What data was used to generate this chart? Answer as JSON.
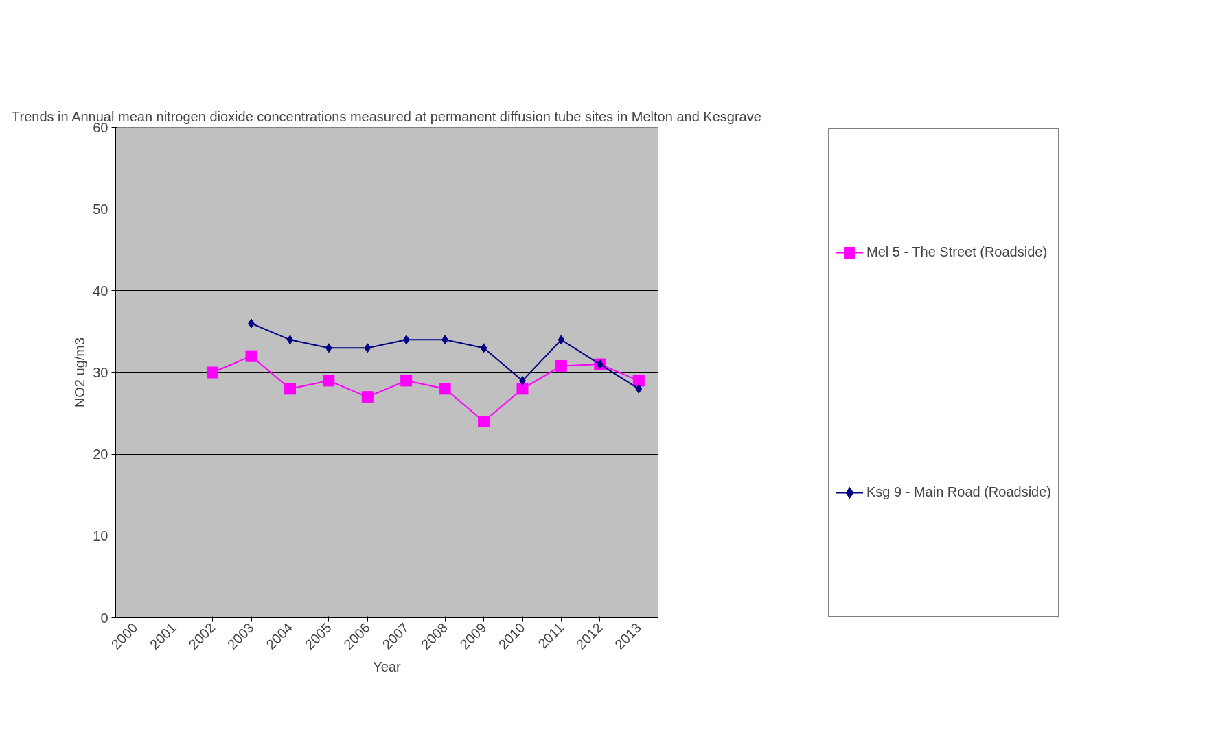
{
  "chart_data": {
    "type": "line",
    "title": "Trends in Annual mean nitrogen dioxide concentrations measured at permanent diffusion tube sites in Melton and Kesgrave",
    "xlabel": "Year",
    "ylabel": "NO2 ug/m3",
    "categories": [
      "2000",
      "2001",
      "2002",
      "2003",
      "2004",
      "2005",
      "2006",
      "2007",
      "2008",
      "2009",
      "2010",
      "2011",
      "2012",
      "2013"
    ],
    "series": [
      {
        "name": "Mel 5 - The Street (Roadside)",
        "color": "#ff00ff",
        "marker": "square",
        "values": [
          null,
          null,
          30,
          32,
          28,
          29,
          27,
          29,
          28,
          24,
          28,
          30.8,
          31,
          29
        ]
      },
      {
        "name": "Ksg 9 - Main Road (Roadside)",
        "color": "#000080",
        "marker": "diamond",
        "values": [
          null,
          null,
          null,
          36,
          34,
          33,
          33,
          34,
          34,
          33,
          29,
          34,
          31,
          28
        ]
      }
    ],
    "ylim": [
      0,
      60
    ],
    "yticks": [
      0,
      10,
      20,
      30,
      40,
      50,
      60
    ],
    "grid": "y",
    "legend": "right",
    "line_style": "solid"
  }
}
